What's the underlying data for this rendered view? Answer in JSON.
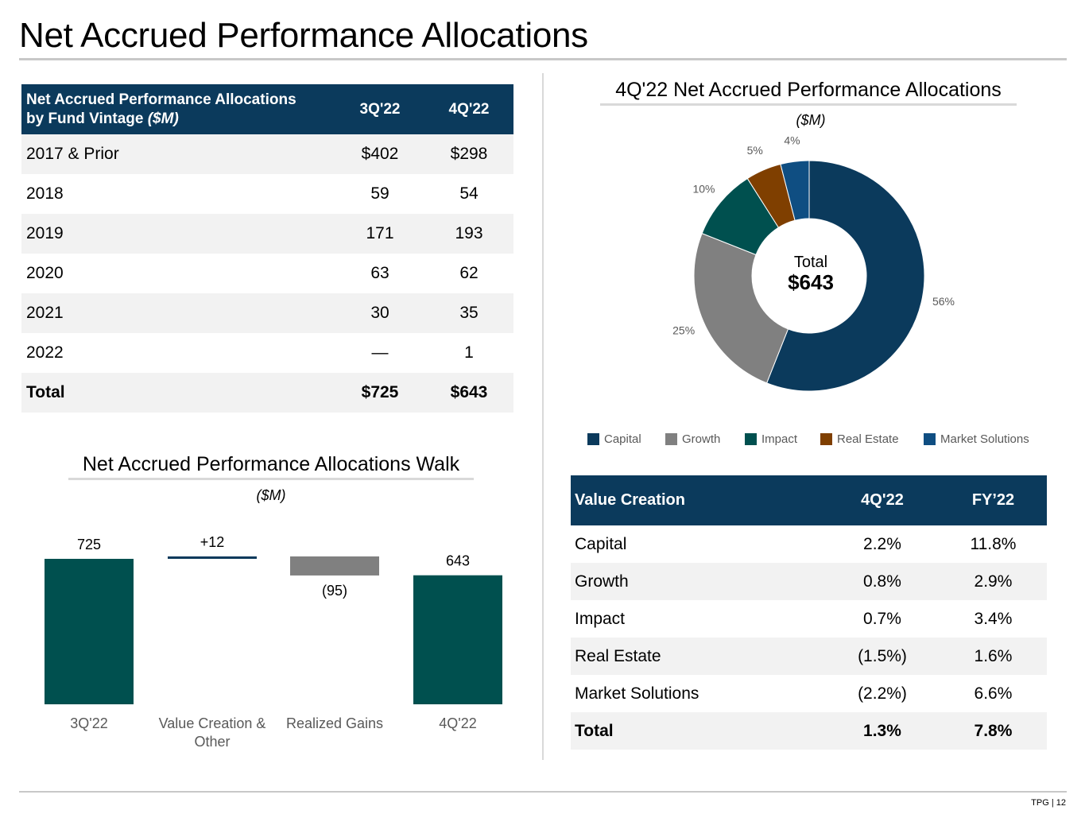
{
  "page": {
    "title": "Net Accrued Performance Allocations",
    "footer": "TPG | 12"
  },
  "vintage_table": {
    "header_line1": "Net Accrued Performance Allocations",
    "header_line2": "by Fund Vintage",
    "header_unit": "($M)",
    "col1": "3Q'22",
    "col2": "4Q'22",
    "rows": [
      {
        "label": "2017 & Prior",
        "v1": "$402",
        "v2": "$298"
      },
      {
        "label": "2018",
        "v1": "59",
        "v2": "54"
      },
      {
        "label": "2019",
        "v1": "171",
        "v2": "193"
      },
      {
        "label": "2020",
        "v1": "63",
        "v2": "62"
      },
      {
        "label": "2021",
        "v1": "30",
        "v2": "35"
      },
      {
        "label": "2022",
        "v1": "—",
        "v2": "1"
      }
    ],
    "total": {
      "label": "Total",
      "v1": "$725",
      "v2": "$643"
    }
  },
  "value_creation_table": {
    "header": "Value Creation",
    "col1": "4Q'22",
    "col2": "FY’22",
    "rows": [
      {
        "label": "Capital",
        "v1": "2.2%",
        "v2": "11.8%"
      },
      {
        "label": "Growth",
        "v1": "0.8%",
        "v2": "2.9%"
      },
      {
        "label": "Impact",
        "v1": "0.7%",
        "v2": "3.4%"
      },
      {
        "label": "Real Estate",
        "v1": "(1.5%)",
        "v2": "1.6%"
      },
      {
        "label": "Market Solutions",
        "v1": "(2.2%)",
        "v2": "6.6%"
      }
    ],
    "total": {
      "label": "Total",
      "v1": "1.3%",
      "v2": "7.8%"
    }
  },
  "chart_data": [
    {
      "type": "pie",
      "title": "4Q'22 Net Accrued Performance Allocations",
      "subtitle": "($M)",
      "center_label": "Total",
      "center_value": "$643",
      "slices": [
        {
          "name": "Capital",
          "value": 56,
          "label": "56%",
          "color": "#0b3a5c"
        },
        {
          "name": "Growth",
          "value": 25,
          "label": "25%",
          "color": "#808080"
        },
        {
          "name": "Impact",
          "value": 10,
          "label": "10%",
          "color": "#00504f"
        },
        {
          "name": "Real Estate",
          "value": 5,
          "label": "5%",
          "color": "#7f3f00"
        },
        {
          "name": "Market Solutions",
          "value": 4,
          "label": "4%",
          "color": "#0f4e82"
        }
      ],
      "legend": [
        "Capital",
        "Growth",
        "Impact",
        "Real Estate",
        "Market Solutions"
      ]
    },
    {
      "type": "bar",
      "subtype": "waterfall",
      "title": "Net Accrued Performance Allocations Walk",
      "subtitle": "($M)",
      "categories": [
        "3Q'22",
        "Value Creation & Other",
        "Realized Gains",
        "4Q'22"
      ],
      "values": [
        725,
        12,
        -95,
        643
      ],
      "labels": [
        "725",
        "+12",
        "(95)",
        "643"
      ],
      "colors": {
        "total": "#00504f",
        "increase": "#0b3a5c",
        "decrease": "#808080"
      }
    }
  ]
}
